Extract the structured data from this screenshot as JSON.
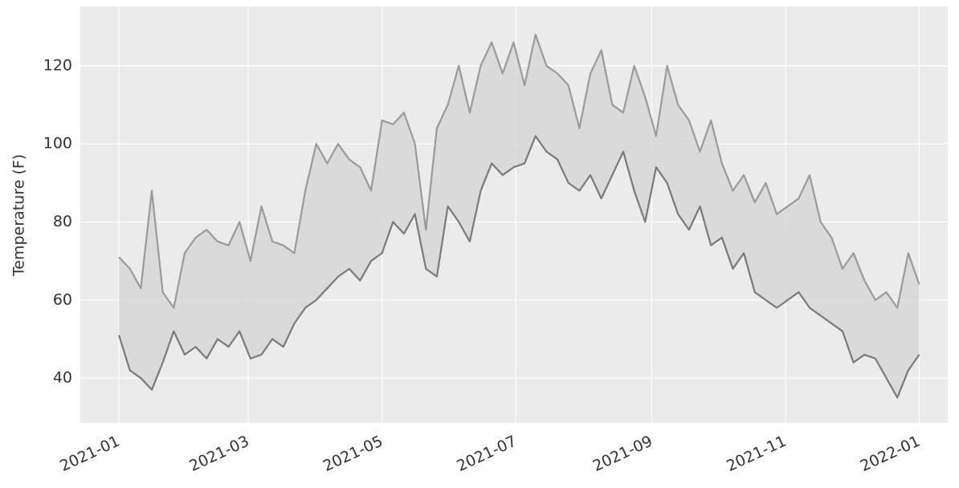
{
  "chart_data": {
    "type": "line",
    "y_label": "Temperature (F)",
    "x": [
      0,
      5,
      10,
      15,
      20,
      25,
      30,
      35,
      40,
      45,
      50,
      55,
      60,
      65,
      70,
      75,
      80,
      85,
      90,
      95,
      100,
      105,
      110,
      115,
      120,
      125,
      130,
      135,
      140,
      145,
      150,
      155,
      160,
      165,
      170,
      175,
      180,
      185,
      190,
      195,
      200,
      205,
      210,
      215,
      220,
      225,
      230,
      235,
      240,
      245,
      250,
      255,
      260,
      265,
      270,
      275,
      280,
      285,
      290,
      295,
      300,
      305,
      310,
      315,
      320,
      325,
      330,
      335,
      340,
      345,
      350,
      355,
      360,
      365
    ],
    "series": [
      {
        "color": "#9a9a9a",
        "values": [
          71,
          68,
          63,
          88,
          62,
          58,
          72,
          76,
          78,
          75,
          74,
          80,
          70,
          84,
          75,
          74,
          72,
          88,
          100,
          95,
          100,
          96,
          94,
          88,
          106,
          105,
          108,
          100,
          78,
          104,
          110,
          120,
          108,
          120,
          126,
          118,
          126,
          115,
          128,
          120,
          118,
          115,
          104,
          118,
          124,
          110,
          108,
          120,
          112,
          102,
          120,
          110,
          106,
          98,
          106,
          95,
          88,
          92,
          85,
          90,
          82,
          84,
          86,
          92,
          80,
          76,
          68,
          72,
          65,
          60,
          62,
          58,
          72,
          64
        ]
      },
      {
        "color": "#7a7a7a",
        "values": [
          51,
          42,
          40,
          37,
          44,
          52,
          46,
          48,
          45,
          50,
          48,
          52,
          45,
          46,
          50,
          48,
          54,
          58,
          60,
          63,
          66,
          68,
          65,
          70,
          72,
          80,
          77,
          82,
          68,
          66,
          84,
          80,
          75,
          88,
          95,
          92,
          94,
          95,
          102,
          98,
          96,
          90,
          88,
          92,
          86,
          92,
          98,
          88,
          80,
          94,
          90,
          82,
          78,
          84,
          74,
          76,
          68,
          72,
          62,
          60,
          58,
          60,
          62,
          58,
          56,
          54,
          52,
          44,
          46,
          45,
          40,
          35,
          42,
          46
        ]
      }
    ],
    "fill_between": true,
    "fill_color": "#d6d6d6",
    "xlim": [
      -17.6,
      378
    ],
    "ylim": [
      28.5,
      135.2
    ],
    "xticks": [
      {
        "value": 0,
        "label": "2021-01"
      },
      {
        "value": 59,
        "label": "2021-03"
      },
      {
        "value": 120,
        "label": "2021-05"
      },
      {
        "value": 181,
        "label": "2021-07"
      },
      {
        "value": 243,
        "label": "2021-09"
      },
      {
        "value": 304,
        "label": "2021-11"
      },
      {
        "value": 365,
        "label": "2022-01"
      }
    ],
    "yticks": [
      40,
      60,
      80,
      100,
      120
    ],
    "grid": true
  }
}
